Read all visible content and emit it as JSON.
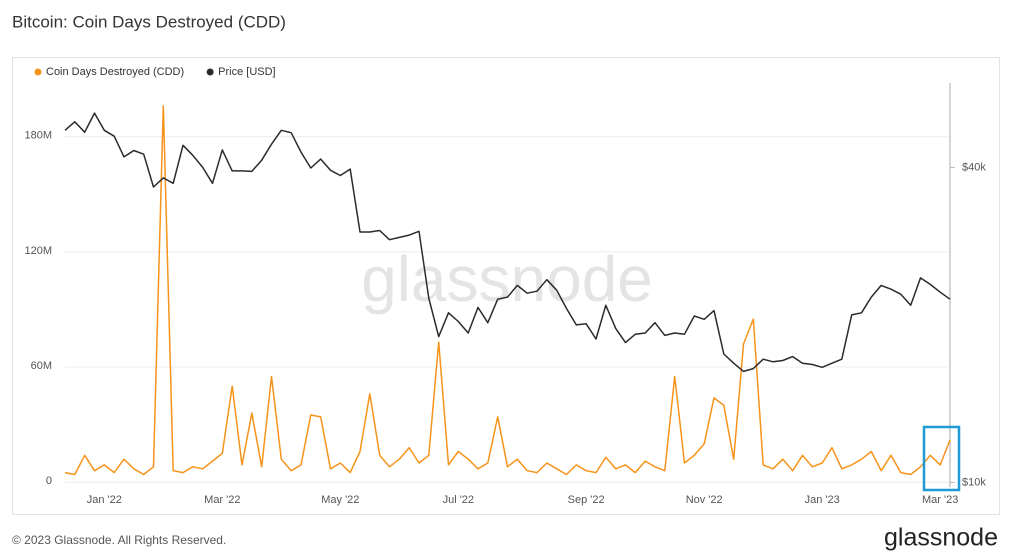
{
  "chart_data": {
    "type": "line",
    "title": "Bitcoin: Coin Days Destroyed (CDD)",
    "watermark": "glassnode",
    "copyright": "© 2023 Glassnode. All Rights Reserved.",
    "logo": "glassnode",
    "categories": [
      null,
      null,
      null,
      null,
      "Jan '22",
      null,
      null,
      null,
      null,
      null,
      null,
      null,
      null,
      null,
      null,
      null,
      "Mar '22",
      null,
      null,
      null,
      null,
      null,
      null,
      null,
      null,
      null,
      null,
      null,
      "May '22",
      null,
      null,
      null,
      null,
      null,
      null,
      null,
      null,
      null,
      null,
      null,
      "Jul '22",
      null,
      null,
      null,
      null,
      null,
      null,
      null,
      null,
      null,
      null,
      null,
      null,
      "Sep '22",
      null,
      null,
      null,
      null,
      null,
      null,
      null,
      null,
      null,
      null,
      null,
      "Nov '22",
      null,
      null,
      null,
      null,
      null,
      null,
      null,
      null,
      null,
      null,
      null,
      "Jan '23",
      null,
      null,
      null,
      null,
      null,
      null,
      null,
      null,
      null,
      null,
      null,
      "Mar '23",
      null
    ],
    "series": [
      {
        "name": "Coin Days Destroyed (CDD)",
        "color": "#f7931a",
        "axis": "y",
        "values": [
          5,
          4,
          14,
          6,
          9,
          5,
          12,
          7,
          4,
          8,
          196,
          6,
          5,
          8,
          7,
          11,
          15,
          50,
          9,
          36,
          8,
          55,
          12,
          6,
          9,
          35,
          34,
          7,
          10,
          5,
          16,
          46,
          14,
          8,
          12,
          18,
          10,
          14,
          73,
          9,
          16,
          12,
          7,
          10,
          34,
          8,
          12,
          6,
          5,
          10,
          7,
          4,
          9,
          6,
          5,
          13,
          7,
          9,
          5,
          11,
          8,
          6,
          55,
          10,
          14,
          20,
          44,
          40,
          12,
          72,
          85,
          9,
          7,
          12,
          6,
          14,
          8,
          10,
          18,
          7,
          9,
          12,
          16,
          6,
          14,
          5,
          4,
          8,
          14,
          9,
          22
        ]
      },
      {
        "name": "Price [USD]",
        "color": "#2b2b2b",
        "axis": "y2",
        "values": [
          47100,
          48900,
          46700,
          50800,
          47100,
          45900,
          41900,
          43100,
          42400,
          36700,
          38200,
          37300,
          44100,
          42200,
          40000,
          37300,
          43200,
          39400,
          39400,
          39300,
          41300,
          44300,
          47100,
          46600,
          42800,
          39900,
          41500,
          39500,
          38600,
          39700,
          30100,
          30100,
          30300,
          29100,
          29400,
          29700,
          30200,
          22500,
          19000,
          21100,
          20300,
          19300,
          21600,
          20200,
          22400,
          22600,
          23800,
          23000,
          23200,
          24400,
          23300,
          21500,
          20000,
          20100,
          18800,
          21800,
          19700,
          18500,
          19200,
          19300,
          20200,
          19100,
          19300,
          19200,
          20800,
          20500,
          21300,
          17600,
          16900,
          16300,
          16500,
          17200,
          17000,
          17100,
          17400,
          16900,
          16800,
          16600,
          16900,
          17200,
          20900,
          21100,
          22600,
          23800,
          23400,
          22900,
          21800,
          24600,
          23900,
          23100,
          22400
        ]
      }
    ],
    "ylim": [
      -2.5,
      208
    ],
    "yticks": [
      0,
      {
        "value": 60,
        "label": "60M"
      },
      {
        "value": 120,
        "label": "120M"
      },
      {
        "value": 180,
        "label": "180M"
      }
    ],
    "y2lim": [
      9800,
      58000
    ],
    "y2ticks": [
      {
        "value": 10000,
        "label": "$10k"
      },
      {
        "value": 40000,
        "label": "$40k"
      }
    ],
    "y2log": true,
    "grid": true,
    "legend": "top-left"
  }
}
